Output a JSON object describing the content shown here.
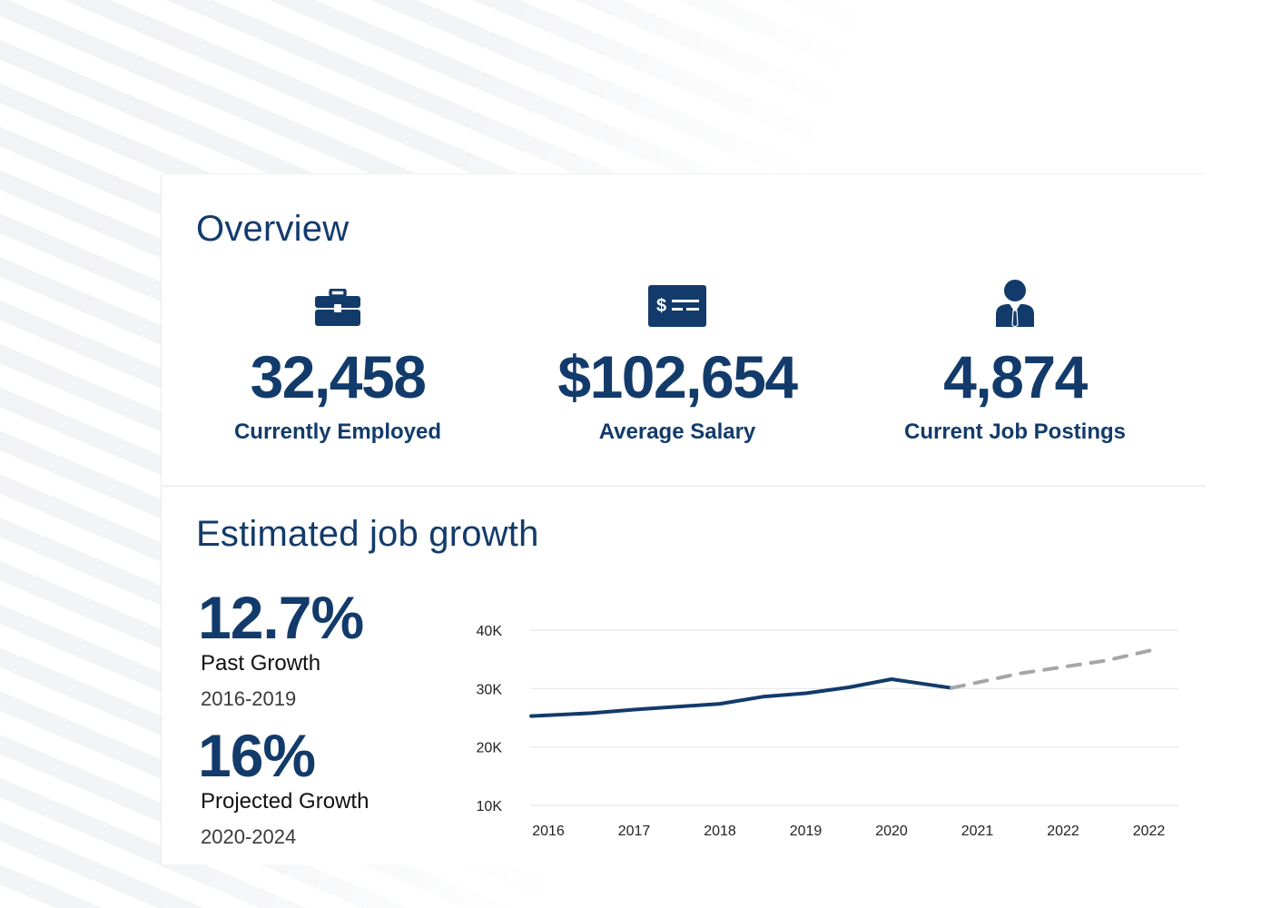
{
  "overview": {
    "title": "Overview",
    "stats": [
      {
        "icon": "briefcase-icon",
        "value": "32,458",
        "label": "Currently Employed"
      },
      {
        "icon": "salary-check-icon",
        "value": "$102,654",
        "label": "Average Salary"
      },
      {
        "icon": "job-seeker-icon",
        "value": "4,874",
        "label": "Current Job Postings"
      }
    ]
  },
  "growth": {
    "title": "Estimated job growth",
    "past": {
      "value": "12.7%",
      "label": "Past Growth",
      "years": "2016-2019"
    },
    "projected": {
      "value": "16%",
      "label": "Projected Growth",
      "years": "2020-2024"
    }
  },
  "colors": {
    "primary": "#123b6b",
    "projection": "#a6a6a6",
    "grid": "#e6e7ea"
  },
  "chart_data": {
    "type": "line",
    "x_tick_labels": [
      "2016",
      "2017",
      "2018",
      "2019",
      "2020",
      "2021",
      "2022",
      "2022"
    ],
    "y_tick_labels": [
      "40K",
      "30K",
      "20K",
      "10K"
    ],
    "y_ticks": [
      40000,
      30000,
      20000,
      10000
    ],
    "ylim": [
      10000,
      40000
    ],
    "grid": true,
    "series": [
      {
        "style": "solid",
        "points": [
          {
            "x": 2015.8,
            "y": 25300
          },
          {
            "x": 2016.5,
            "y": 25800
          },
          {
            "x": 2017.0,
            "y": 26400
          },
          {
            "x": 2018.0,
            "y": 27400
          },
          {
            "x": 2018.5,
            "y": 28600
          },
          {
            "x": 2019.0,
            "y": 29200
          },
          {
            "x": 2019.5,
            "y": 30200
          },
          {
            "x": 2020.0,
            "y": 31600
          },
          {
            "x": 2020.7,
            "y": 30100
          }
        ]
      },
      {
        "style": "dashed",
        "points": [
          {
            "x": 2020.7,
            "y": 30100
          },
          {
            "x": 2021.5,
            "y": 32600
          },
          {
            "x": 2022.5,
            "y": 34800
          },
          {
            "x": 2023.1,
            "y": 36800
          }
        ]
      }
    ]
  }
}
